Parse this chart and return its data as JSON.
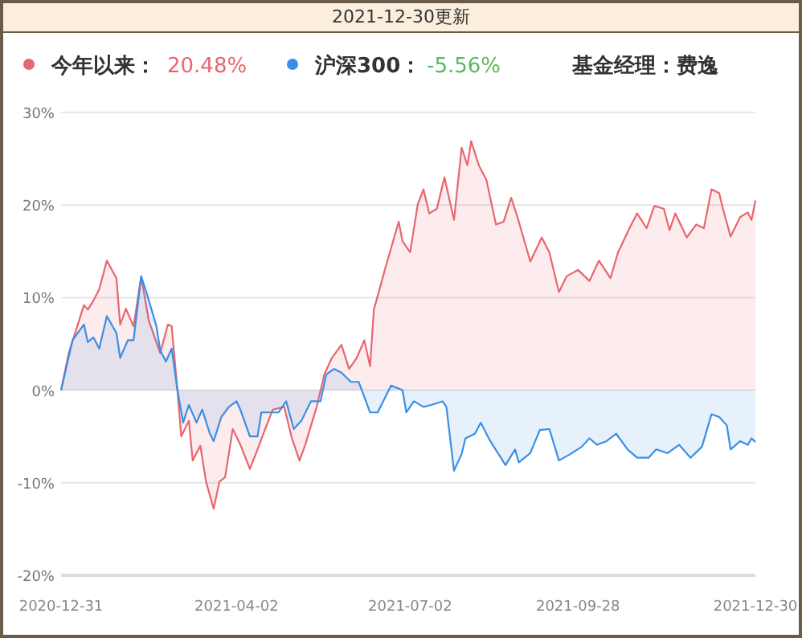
{
  "chart_data": {
    "type": "area",
    "title": "2021-12-30更新",
    "subtitle": "基金经理：费逸",
    "annotations": [
      "20.48%",
      "-5.56%"
    ],
    "legend": "top left",
    "grid": "y",
    "xlim": [
      "2020-12-31",
      "2021-12-30"
    ],
    "xticks": [
      {
        "value": "2020-12-31",
        "label": "2020-12-31"
      },
      {
        "value": "2021-04-02",
        "label": "2021-04-02"
      },
      {
        "value": "2021-07-02",
        "label": "2021-07-02"
      },
      {
        "value": "2021-09-28",
        "label": "2021-09-28"
      },
      {
        "value": "2021-12-30",
        "label": "2021-12-30"
      }
    ],
    "ylim": [
      -20,
      30
    ],
    "yticks": [
      {
        "value": -20,
        "label": "-20%"
      },
      {
        "value": -10,
        "label": "-10%"
      },
      {
        "value": 0,
        "label": "0%"
      },
      {
        "value": 10,
        "label": "10%"
      },
      {
        "value": 20,
        "label": "20%"
      },
      {
        "value": 30,
        "label": "30%"
      }
    ],
    "series": [
      {
        "name": "今年以来：",
        "color": "#e8666e",
        "x": [
          "2020-12-31",
          "2021-01-04",
          "2021-01-12",
          "2021-01-14",
          "2021-01-17",
          "2021-01-20",
          "2021-01-24",
          "2021-01-29",
          "2021-01-31",
          "2021-02-03",
          "2021-02-07",
          "2021-02-11",
          "2021-02-15",
          "2021-02-21",
          "2021-02-25",
          "2021-02-27",
          "2021-03-02",
          "2021-03-04",
          "2021-03-08",
          "2021-03-10",
          "2021-03-14",
          "2021-03-17",
          "2021-03-21",
          "2021-03-24",
          "2021-03-27",
          "2021-03-31",
          "2021-04-04",
          "2021-04-09",
          "2021-04-13",
          "2021-04-17",
          "2021-04-21",
          "2021-04-27",
          "2021-05-01",
          "2021-05-05",
          "2021-05-08",
          "2021-05-14",
          "2021-05-18",
          "2021-05-22",
          "2021-05-27",
          "2021-05-31",
          "2021-06-04",
          "2021-06-08",
          "2021-06-11",
          "2021-06-13",
          "2021-06-19",
          "2021-06-26",
          "2021-06-28",
          "2021-07-02",
          "2021-07-06",
          "2021-07-09",
          "2021-07-12",
          "2021-07-16",
          "2021-07-20",
          "2021-07-25",
          "2021-07-29",
          "2021-08-01",
          "2021-08-03",
          "2021-08-07",
          "2021-08-11",
          "2021-08-16",
          "2021-08-20",
          "2021-08-24",
          "2021-08-28",
          "2021-09-03",
          "2021-09-09",
          "2021-09-13",
          "2021-09-18",
          "2021-09-22",
          "2021-09-28",
          "2021-10-04",
          "2021-10-09",
          "2021-10-15",
          "2021-10-19",
          "2021-10-25",
          "2021-10-29",
          "2021-11-03",
          "2021-11-07",
          "2021-11-12",
          "2021-11-15",
          "2021-11-18",
          "2021-11-24",
          "2021-11-29",
          "2021-12-03",
          "2021-12-07",
          "2021-12-11",
          "2021-12-13",
          "2021-12-17",
          "2021-12-22",
          "2021-12-26",
          "2021-12-28",
          "2021-12-30"
        ],
        "values": [
          0,
          4,
          9.2,
          8.7,
          9.7,
          10.9,
          14,
          12.1,
          7.1,
          8.8,
          6.9,
          12.3,
          7.5,
          4,
          7.1,
          6.9,
          0,
          -5,
          -3.3,
          -7.6,
          -6,
          -9.9,
          -12.8,
          -9.9,
          -9.4,
          -4.2,
          -5.9,
          -8.5,
          -6.4,
          -4.2,
          -2.1,
          -1.8,
          -5.2,
          -7.6,
          -5.9,
          -1.8,
          1.7,
          3.5,
          4.9,
          2.3,
          3.5,
          5.4,
          2.6,
          8.7,
          13.2,
          18.2,
          16.1,
          14.9,
          20.1,
          21.7,
          19.1,
          19.6,
          23,
          18.4,
          26.2,
          24.3,
          26.9,
          24.3,
          22.7,
          17.9,
          18.2,
          20.8,
          18.2,
          13.9,
          16.5,
          14.9,
          10.6,
          12.3,
          13,
          11.8,
          14,
          12.1,
          14.9,
          17.5,
          19.1,
          17.5,
          19.9,
          19.6,
          17.3,
          19.1,
          16.5,
          17.9,
          17.5,
          21.7,
          21.3,
          19.6,
          16.6,
          18.7,
          19.2,
          18.4,
          20.5
        ]
      },
      {
        "name": "沪深300：",
        "color": "#3a8ee6",
        "x": [
          "2020-12-31",
          "2021-01-06",
          "2021-01-12",
          "2021-01-14",
          "2021-01-17",
          "2021-01-20",
          "2021-01-24",
          "2021-01-29",
          "2021-01-31",
          "2021-02-04",
          "2021-02-07",
          "2021-02-11",
          "2021-02-14",
          "2021-02-19",
          "2021-02-21",
          "2021-02-24",
          "2021-02-27",
          "2021-03-02",
          "2021-03-05",
          "2021-03-08",
          "2021-03-12",
          "2021-03-15",
          "2021-03-19",
          "2021-03-21",
          "2021-03-25",
          "2021-03-29",
          "2021-04-02",
          "2021-04-04",
          "2021-04-09",
          "2021-04-13",
          "2021-04-15",
          "2021-04-20",
          "2021-04-24",
          "2021-04-28",
          "2021-05-02",
          "2021-05-06",
          "2021-05-11",
          "2021-05-16",
          "2021-05-19",
          "2021-05-23",
          "2021-05-27",
          "2021-06-01",
          "2021-06-05",
          "2021-06-11",
          "2021-06-15",
          "2021-06-22",
          "2021-06-28",
          "2021-06-30",
          "2021-07-04",
          "2021-07-09",
          "2021-07-13",
          "2021-07-19",
          "2021-07-21",
          "2021-07-25",
          "2021-07-29",
          "2021-07-31",
          "2021-08-05",
          "2021-08-08",
          "2021-08-13",
          "2021-08-17",
          "2021-08-21",
          "2021-08-26",
          "2021-08-28",
          "2021-09-03",
          "2021-09-08",
          "2021-09-13",
          "2021-09-18",
          "2021-09-24",
          "2021-09-30",
          "2021-10-04",
          "2021-10-08",
          "2021-10-13",
          "2021-10-18",
          "2021-10-24",
          "2021-10-29",
          "2021-11-04",
          "2021-11-08",
          "2021-11-14",
          "2021-11-20",
          "2021-11-26",
          "2021-12-02",
          "2021-12-07",
          "2021-12-11",
          "2021-12-15",
          "2021-12-17",
          "2021-12-22",
          "2021-12-26",
          "2021-12-28",
          "2021-12-30"
        ],
        "values": [
          0,
          5.4,
          7.1,
          5.2,
          5.7,
          4.5,
          8,
          6.2,
          3.5,
          5.4,
          5.4,
          12.3,
          10.4,
          6.9,
          4.3,
          3.1,
          4.5,
          0,
          -3.5,
          -1.6,
          -3.5,
          -2.1,
          -4.7,
          -5.5,
          -2.9,
          -1.8,
          -1.2,
          -2.1,
          -5,
          -5,
          -2.4,
          -2.4,
          -2.4,
          -1.2,
          -4.2,
          -3.3,
          -1.2,
          -1.2,
          1.7,
          2.3,
          1.9,
          0.9,
          0.9,
          -2.4,
          -2.4,
          0.5,
          0,
          -2.4,
          -1.2,
          -1.8,
          -1.6,
          -1.2,
          -1.8,
          -8.7,
          -6.9,
          -5.2,
          -4.7,
          -3.5,
          -5.5,
          -6.8,
          -8.1,
          -6.4,
          -7.8,
          -6.8,
          -4.3,
          -4.2,
          -7.6,
          -6.9,
          -6.1,
          -5.2,
          -5.9,
          -5.5,
          -4.7,
          -6.4,
          -7.3,
          -7.3,
          -6.4,
          -6.8,
          -5.9,
          -7.3,
          -6.1,
          -2.6,
          -2.9,
          -3.8,
          -6.4,
          -5.5,
          -5.9,
          -5.2,
          -5.6
        ]
      }
    ]
  }
}
